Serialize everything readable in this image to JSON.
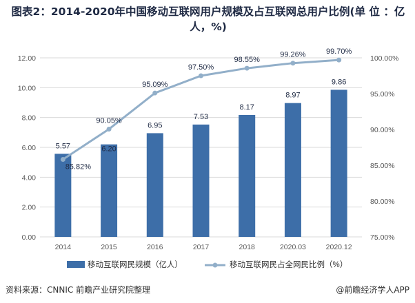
{
  "title": "图表2：2014-2020年中国移动互联网用户规模及占互联网总用户比例(单 位 ：亿人，%)",
  "chart_data": {
    "type": "bar",
    "categories": [
      "2014",
      "2015",
      "2016",
      "2017",
      "2018",
      "2020.03",
      "2020.12"
    ],
    "series": [
      {
        "name": "移动互联网民规模（亿人）",
        "type": "bar",
        "axis": "left",
        "values": [
          5.57,
          6.2,
          6.95,
          7.53,
          8.17,
          8.97,
          9.86
        ],
        "labels": [
          "5.57",
          "6.20",
          "6.95",
          "7.53",
          "8.17",
          "8.97",
          "9.86"
        ],
        "color": "#3d6ea8"
      },
      {
        "name": "移动互联网民占全网民比例（%）",
        "type": "line",
        "axis": "right",
        "values": [
          85.82,
          90.05,
          95.09,
          97.5,
          98.55,
          99.26,
          99.7
        ],
        "labels": [
          "85.82%",
          "90.05%",
          "95.09%",
          "97.50%",
          "98.55%",
          "99.26%",
          "99.70%"
        ],
        "color": "#92afc9"
      }
    ],
    "y_left": {
      "min": 0,
      "max": 12,
      "ticks": [
        "0.00",
        "2.00",
        "4.00",
        "6.00",
        "8.00",
        "10.00",
        "12.00"
      ]
    },
    "y_right": {
      "min": 75,
      "max": 100,
      "ticks": [
        "75.00%",
        "80.00%",
        "85.00%",
        "90.00%",
        "95.00%",
        "100.00%"
      ]
    },
    "grid": true,
    "legend_position": "bottom"
  },
  "footer": {
    "source": "资料来源：CNNIC 前瞻产业研究院整理",
    "brand": "@前瞻经济学人APP"
  },
  "colors": {
    "bar": "#3d6ea8",
    "line": "#92afc9",
    "grid": "#d9d9d9",
    "title": "#1f2a44"
  }
}
